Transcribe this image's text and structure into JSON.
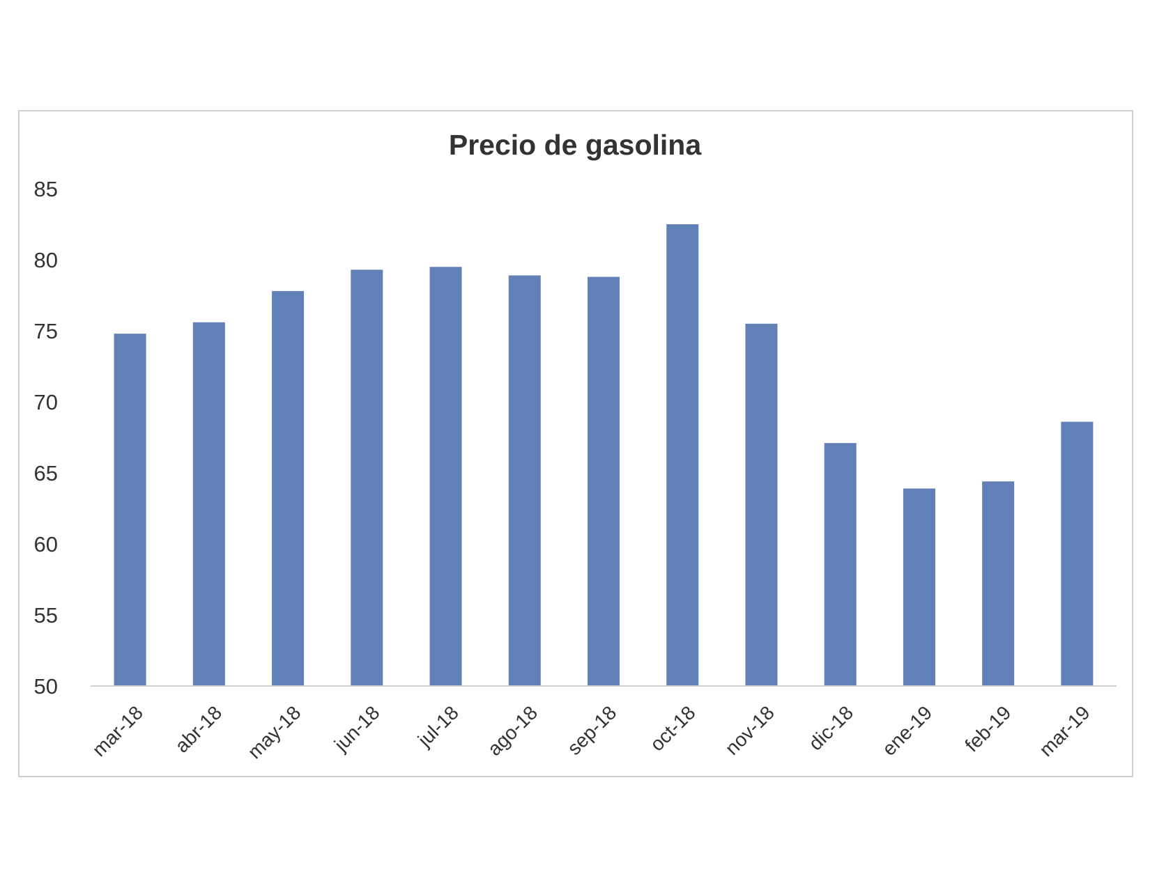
{
  "chart_data": {
    "type": "bar",
    "title": "Precio de gasolina",
    "xlabel": "",
    "ylabel": "",
    "categories": [
      "mar-18",
      "abr-18",
      "may-18",
      "jun-18",
      "jul-18",
      "ago-18",
      "sep-18",
      "oct-18",
      "nov-18",
      "dic-18",
      "ene-19",
      "feb-19",
      "mar-19"
    ],
    "values": [
      74.8,
      75.6,
      77.8,
      79.3,
      79.5,
      78.9,
      78.8,
      82.5,
      75.5,
      67.1,
      63.9,
      64.4,
      68.6
    ],
    "ylim": [
      50,
      85
    ],
    "yticks": [
      50,
      55,
      60,
      65,
      70,
      75,
      80,
      85
    ],
    "bar_color": "#6280b8",
    "grid": false,
    "legend": "none"
  }
}
